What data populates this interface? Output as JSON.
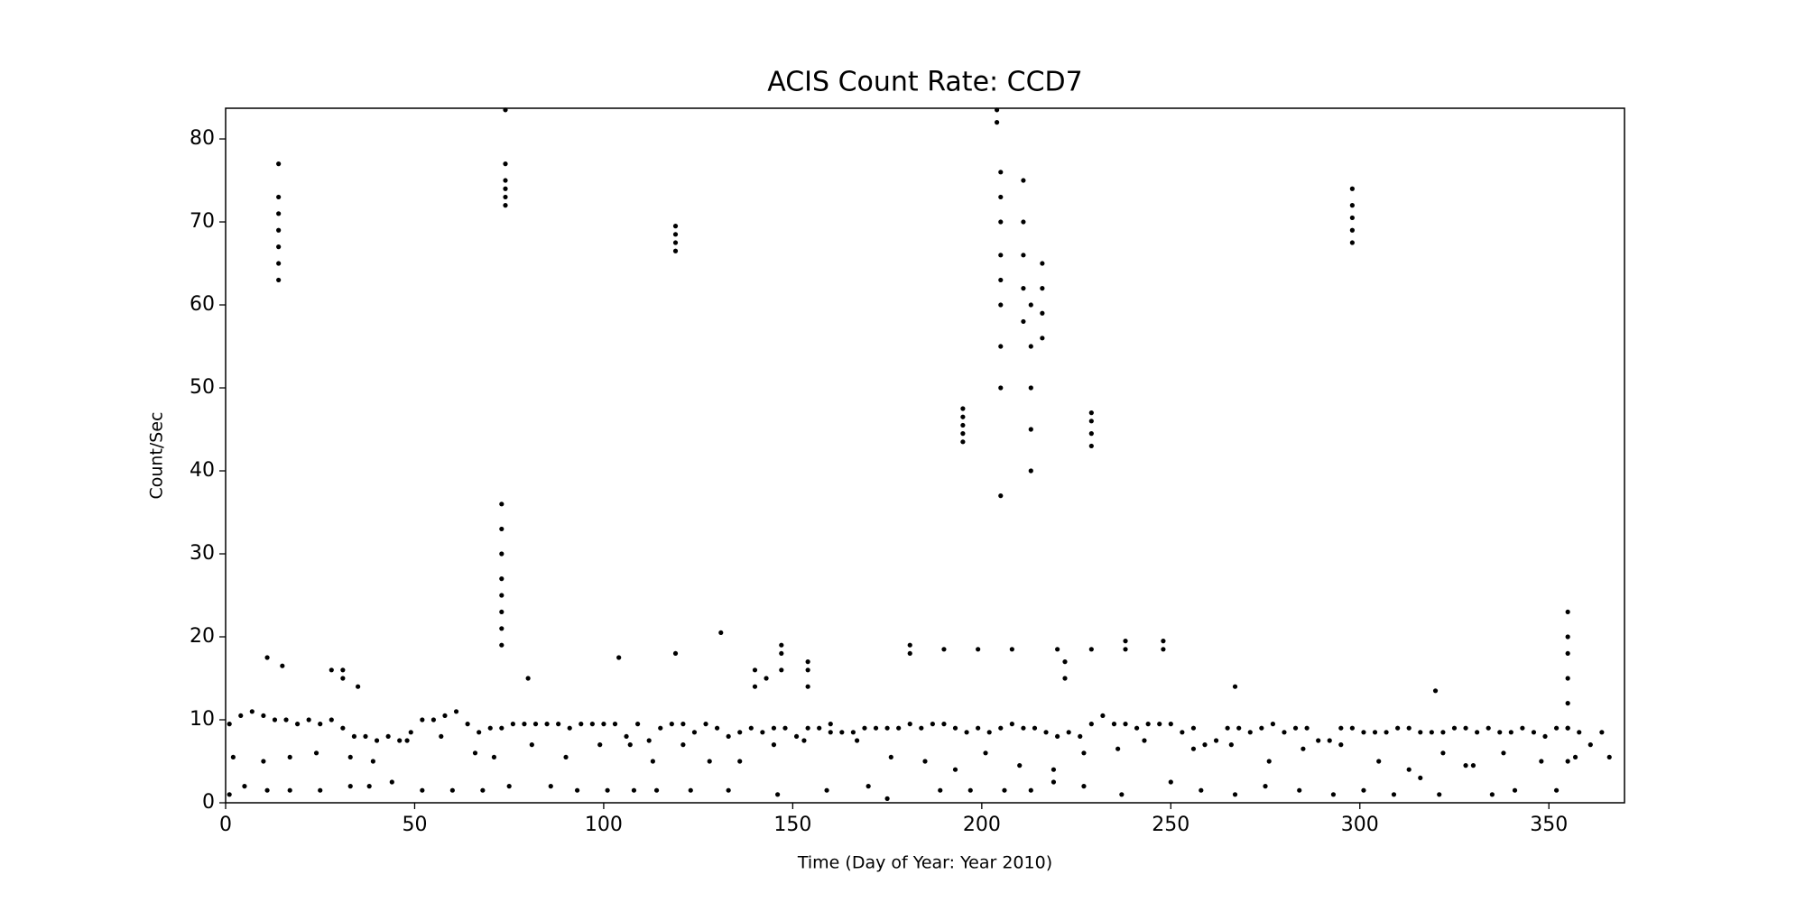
{
  "chart_data": {
    "type": "scatter",
    "title": "ACIS Count Rate: CCD7",
    "x_label": "Time (Day of Year: Year 2010)",
    "y_label": "Count/Sec",
    "color": "#000000",
    "xlim": [
      0,
      370
    ],
    "ylim": [
      0,
      83.7
    ],
    "xticks": [
      0,
      50,
      100,
      150,
      200,
      250,
      300,
      350
    ],
    "yticks": [
      0,
      10,
      20,
      30,
      40,
      50,
      60,
      70,
      80
    ],
    "grid": false,
    "x": [
      1,
      4,
      7,
      10,
      13,
      16,
      19,
      22,
      25,
      28,
      31,
      34,
      37,
      40,
      43,
      46,
      49,
      52,
      55,
      58,
      61,
      64,
      67,
      70,
      73,
      76,
      79,
      82,
      85,
      88,
      91,
      94,
      97,
      100,
      103,
      106,
      109,
      112,
      115,
      118,
      121,
      124,
      127,
      130,
      133,
      136,
      139,
      142,
      145,
      148,
      151,
      154,
      157,
      160,
      163,
      166,
      169,
      172,
      175,
      178,
      181,
      184,
      187,
      190,
      193,
      196,
      199,
      202,
      205,
      208,
      211,
      214,
      217,
      220,
      223,
      226,
      229,
      232,
      235,
      238,
      241,
      244,
      247,
      250,
      253,
      256,
      259,
      262,
      265,
      268,
      271,
      274,
      277,
      280,
      283,
      286,
      289,
      292,
      295,
      298,
      301,
      304,
      307,
      310,
      313,
      316,
      319,
      322,
      325,
      328,
      331,
      334,
      337,
      340,
      343,
      346,
      349,
      352,
      355,
      358,
      361,
      364,
      2,
      10,
      17,
      24,
      33,
      39,
      48,
      57,
      66,
      71,
      81,
      90,
      99,
      107,
      113,
      121,
      128,
      136,
      145,
      153,
      160,
      167,
      176,
      185,
      193,
      201,
      210,
      219,
      227,
      236,
      243,
      256,
      266,
      276,
      285,
      295,
      305,
      313,
      322,
      330,
      338,
      348,
      357,
      366,
      1,
      5,
      11,
      17,
      25,
      33,
      38,
      44,
      52,
      60,
      68,
      75,
      86,
      93,
      101,
      108,
      114,
      123,
      133,
      146,
      159,
      170,
      175,
      189,
      197,
      206,
      213,
      219,
      227,
      237,
      250,
      258,
      267,
      275,
      284,
      293,
      301,
      309,
      316,
      321,
      328,
      335,
      341,
      352,
      11,
      15,
      28,
      80,
      267,
      320,
      31,
      31,
      35,
      14,
      14,
      14,
      14,
      14,
      14,
      14,
      74,
      74,
      74,
      74,
      74,
      74,
      73,
      73,
      73,
      73,
      73,
      73,
      73,
      73,
      119,
      119,
      119,
      119,
      195,
      195,
      195,
      195,
      195,
      205,
      205,
      205,
      205,
      205,
      205,
      205,
      205,
      205,
      211,
      211,
      211,
      211,
      211,
      213,
      213,
      213,
      213,
      213,
      216,
      216,
      216,
      216,
      204,
      204,
      229,
      229,
      229,
      229,
      298,
      298,
      298,
      298,
      298,
      355,
      355,
      355,
      355,
      355,
      355,
      355,
      104,
      119,
      131,
      140,
      140,
      143,
      147,
      147,
      147,
      154,
      154,
      154,
      181,
      181,
      190,
      199,
      208,
      220,
      222,
      222,
      229,
      238,
      238,
      248,
      248
    ],
    "values": [
      9.5,
      10.5,
      11,
      10.5,
      10,
      10,
      9.5,
      10,
      9.5,
      10,
      9,
      8,
      8,
      7.5,
      8,
      7.5,
      8.5,
      10,
      10,
      10.5,
      11,
      9.5,
      8.5,
      9,
      9,
      9.5,
      9.5,
      9.5,
      9.5,
      9.5,
      9,
      9.5,
      9.5,
      9.5,
      9.5,
      8,
      9.5,
      7.5,
      9,
      9.5,
      9.5,
      8.5,
      9.5,
      9,
      8,
      8.5,
      9,
      8.5,
      9,
      9,
      8,
      9,
      9,
      9.5,
      8.5,
      8.5,
      9,
      9,
      9,
      9,
      9.5,
      9,
      9.5,
      9.5,
      9,
      8.5,
      9,
      8.5,
      9,
      9.5,
      9,
      9,
      8.5,
      8,
      8.5,
      8,
      9.5,
      10.5,
      9.5,
      9.5,
      9,
      9.5,
      9.5,
      9.5,
      8.5,
      9,
      7,
      7.5,
      9,
      9,
      8.5,
      9,
      9.5,
      8.5,
      9,
      9,
      7.5,
      7.5,
      9,
      9,
      8.5,
      8.5,
      8.5,
      9,
      9,
      8.5,
      8.5,
      8.5,
      9,
      9,
      8.5,
      9,
      8.5,
      8.5,
      9,
      8.5,
      8,
      9,
      9,
      8.5,
      7,
      8.5,
      5.5,
      5,
      5.5,
      6,
      5.5,
      5,
      7.5,
      8,
      6,
      5.5,
      7,
      5.5,
      7,
      7,
      5,
      7,
      5,
      5,
      7,
      7.5,
      8.5,
      7.5,
      5.5,
      5,
      4,
      6,
      4.5,
      4,
      6,
      6.5,
      7.5,
      6.5,
      7,
      5,
      6.5,
      7,
      5,
      4,
      6,
      4.5,
      6,
      5,
      5.5,
      5.5,
      1,
      2,
      1.5,
      1.5,
      1.5,
      2,
      2,
      2.5,
      1.5,
      1.5,
      1.5,
      2,
      2,
      1.5,
      1.5,
      1.5,
      1.5,
      1.5,
      1.5,
      1,
      1.5,
      2,
      0.5,
      1.5,
      1.5,
      1.5,
      1.5,
      2.5,
      2,
      1,
      2.5,
      1.5,
      1,
      2,
      1.5,
      1,
      1.5,
      1,
      3,
      1,
      4.5,
      1,
      1.5,
      1.5,
      17.5,
      16.5,
      16,
      15,
      14,
      13.5,
      15,
      16,
      14,
      63,
      65,
      67,
      69,
      71,
      73,
      77,
      72,
      73,
      74,
      75,
      77,
      83.5,
      19,
      21,
      23,
      25,
      27,
      30,
      33,
      36,
      66.5,
      67.5,
      68.5,
      69.5,
      43.5,
      44.5,
      45.5,
      46.5,
      47.5,
      37,
      50,
      55,
      60,
      63,
      66,
      70,
      73,
      76,
      58,
      62,
      66,
      70,
      75,
      40,
      45,
      50,
      55,
      60,
      56,
      59,
      62,
      65,
      82,
      83.5,
      43,
      44.5,
      46,
      47,
      67.5,
      69,
      70.5,
      72,
      74,
      5,
      9,
      12,
      15,
      18,
      20,
      23,
      17.5,
      18,
      20.5,
      14,
      16,
      15,
      16,
      18,
      19,
      14,
      16,
      17,
      18,
      19,
      18.5,
      18.5,
      18.5,
      18.5,
      15,
      17,
      18.5,
      18.5,
      19.5,
      18.5,
      19.5
    ]
  }
}
